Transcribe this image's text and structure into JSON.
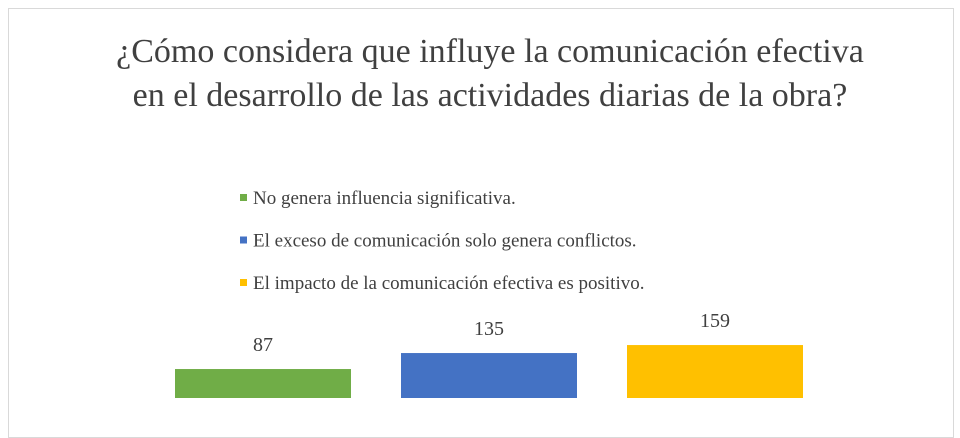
{
  "chart_data": {
    "type": "bar",
    "title": "¿Cómo considera que influye la comunicación efectiva en el desarrollo de las actividades diarias de la obra?",
    "categories": [
      null
    ],
    "series": [
      {
        "name": "No genera influencia significativa.",
        "color": "#70ad47",
        "values": [
          87
        ]
      },
      {
        "name": "El exceso de comunicación solo genera conflictos.",
        "color": "#4472c4",
        "values": [
          135
        ]
      },
      {
        "name": "El impacto de la comunicación efectiva es positivo.",
        "color": "#ffc000",
        "values": [
          159
        ]
      }
    ]
  }
}
